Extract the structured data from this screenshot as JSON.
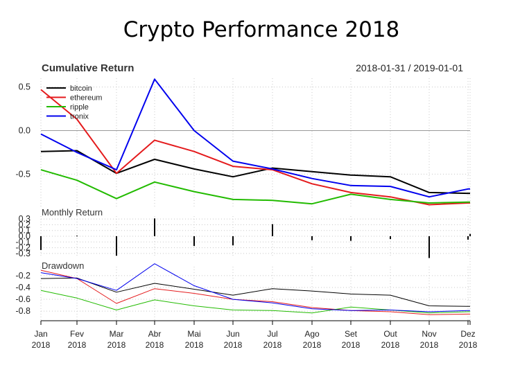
{
  "title": "Crypto Performance 2018",
  "date_range": "2018-01-31 / 2019-01-01",
  "panels": {
    "cumulative": "Cumulative Return",
    "monthly": "Monthly Return",
    "drawdown": "Drawdown"
  },
  "x_ticks": [
    {
      "month": "Jan",
      "year": "2018"
    },
    {
      "month": "Fev",
      "year": "2018"
    },
    {
      "month": "Mar",
      "year": "2018"
    },
    {
      "month": "Abr",
      "year": "2018"
    },
    {
      "month": "Mai",
      "year": "2018"
    },
    {
      "month": "Jun",
      "year": "2018"
    },
    {
      "month": "Jul",
      "year": "2018"
    },
    {
      "month": "Ago",
      "year": "2018"
    },
    {
      "month": "Set",
      "year": "2018"
    },
    {
      "month": "Out",
      "year": "2018"
    },
    {
      "month": "Nov",
      "year": "2018"
    },
    {
      "month": "Dez",
      "year": "2018"
    }
  ],
  "colors": {
    "bitcoin": "#000000",
    "ethereum": "#e41a1c",
    "ripple": "#22bb00",
    "tronix": "#0000ee",
    "grid": "#c8c8c8",
    "zero_line": "#999999"
  },
  "chart_data": [
    {
      "type": "line",
      "name": "cumulative",
      "title": "Cumulative Return",
      "x": [
        "2018-01-31",
        "2018-02-28",
        "2018-03-31",
        "2018-04-30",
        "2018-05-31",
        "2018-06-30",
        "2018-07-31",
        "2018-08-31",
        "2018-09-30",
        "2018-10-31",
        "2018-11-30",
        "2018-12-31",
        "2019-01-01"
      ],
      "y_ticks": [
        "0.5",
        "0.0",
        "-0.5"
      ],
      "ylim": [
        -0.87,
        0.6
      ],
      "legend_position": "top-left",
      "grid": true,
      "series": [
        {
          "name": "bitcoin",
          "values": [
            -0.24,
            -0.23,
            -0.49,
            -0.33,
            -0.44,
            -0.53,
            -0.43,
            -0.47,
            -0.51,
            -0.53,
            -0.71,
            -0.72,
            -0.72
          ]
        },
        {
          "name": "ethereum",
          "values": [
            0.47,
            0.13,
            -0.49,
            -0.11,
            -0.24,
            -0.41,
            -0.45,
            -0.61,
            -0.71,
            -0.76,
            -0.85,
            -0.83,
            -0.83
          ]
        },
        {
          "name": "ripple",
          "values": [
            -0.45,
            -0.57,
            -0.78,
            -0.59,
            -0.7,
            -0.79,
            -0.8,
            -0.84,
            -0.73,
            -0.79,
            -0.83,
            -0.82,
            -0.82
          ]
        },
        {
          "name": "tronix",
          "values": [
            -0.04,
            -0.25,
            -0.45,
            0.59,
            0.0,
            -0.35,
            -0.44,
            -0.55,
            -0.63,
            -0.64,
            -0.76,
            -0.67,
            -0.67
          ]
        }
      ]
    },
    {
      "type": "bar",
      "name": "monthly",
      "title": "Monthly Return",
      "y_ticks": [
        "0.3",
        "0.2",
        "0.1",
        "0.0",
        "-0.1",
        "-0.2",
        "-0.3"
      ],
      "ylim": [
        -0.35,
        0.35
      ],
      "values": [
        -0.24,
        0.01,
        -0.34,
        0.31,
        -0.17,
        -0.16,
        0.21,
        -0.07,
        -0.08,
        -0.05,
        -0.38,
        -0.06,
        0.04
      ]
    },
    {
      "type": "line",
      "name": "drawdown",
      "title": "Drawdown",
      "y_ticks": [
        "-0.2",
        "-0.4",
        "-0.6",
        "-0.8"
      ],
      "ylim": [
        -0.95,
        -0.05
      ],
      "series": [
        {
          "name": "bitcoin",
          "values": [
            -0.25,
            -0.24,
            -0.48,
            -0.33,
            -0.43,
            -0.53,
            -0.42,
            -0.46,
            -0.51,
            -0.53,
            -0.71,
            -0.72,
            -0.72
          ]
        },
        {
          "name": "ethereum",
          "values": [
            -0.11,
            -0.25,
            -0.67,
            -0.42,
            -0.5,
            -0.6,
            -0.64,
            -0.74,
            -0.79,
            -0.81,
            -0.86,
            -0.85,
            -0.85
          ]
        },
        {
          "name": "ripple",
          "values": [
            -0.45,
            -0.58,
            -0.78,
            -0.61,
            -0.71,
            -0.78,
            -0.79,
            -0.83,
            -0.73,
            -0.78,
            -0.83,
            -0.81,
            -0.81
          ]
        },
        {
          "name": "tronix",
          "values": [
            -0.15,
            -0.25,
            -0.45,
            0.0,
            -0.37,
            -0.6,
            -0.66,
            -0.76,
            -0.79,
            -0.78,
            -0.81,
            -0.79,
            -0.79
          ]
        }
      ]
    }
  ]
}
